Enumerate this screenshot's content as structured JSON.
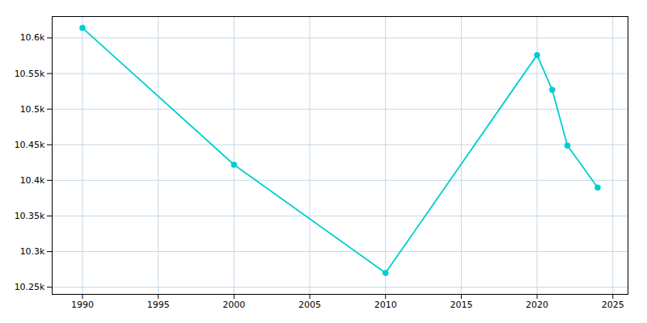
{
  "chart_data": {
    "type": "line",
    "x": [
      1990,
      2000,
      2010,
      2020,
      2021,
      2022,
      2024
    ],
    "values": [
      10614,
      10422,
      10270,
      10576,
      10527,
      10449,
      10390
    ],
    "color": "#00CED1",
    "marker": "circle",
    "xlim": [
      1988,
      2026
    ],
    "ylim": [
      10240,
      10630
    ],
    "xticks": [
      1990,
      1995,
      2000,
      2005,
      2010,
      2015,
      2020,
      2025
    ],
    "yticks": [
      {
        "value": 10250,
        "label": "10.25k"
      },
      {
        "value": 10300,
        "label": "10.3k"
      },
      {
        "value": 10350,
        "label": "10.35k"
      },
      {
        "value": 10400,
        "label": "10.4k"
      },
      {
        "value": 10450,
        "label": "10.45k"
      },
      {
        "value": 10500,
        "label": "10.5k"
      },
      {
        "value": 10550,
        "label": "10.55k"
      },
      {
        "value": 10600,
        "label": "10.6k"
      }
    ],
    "grid": true
  }
}
